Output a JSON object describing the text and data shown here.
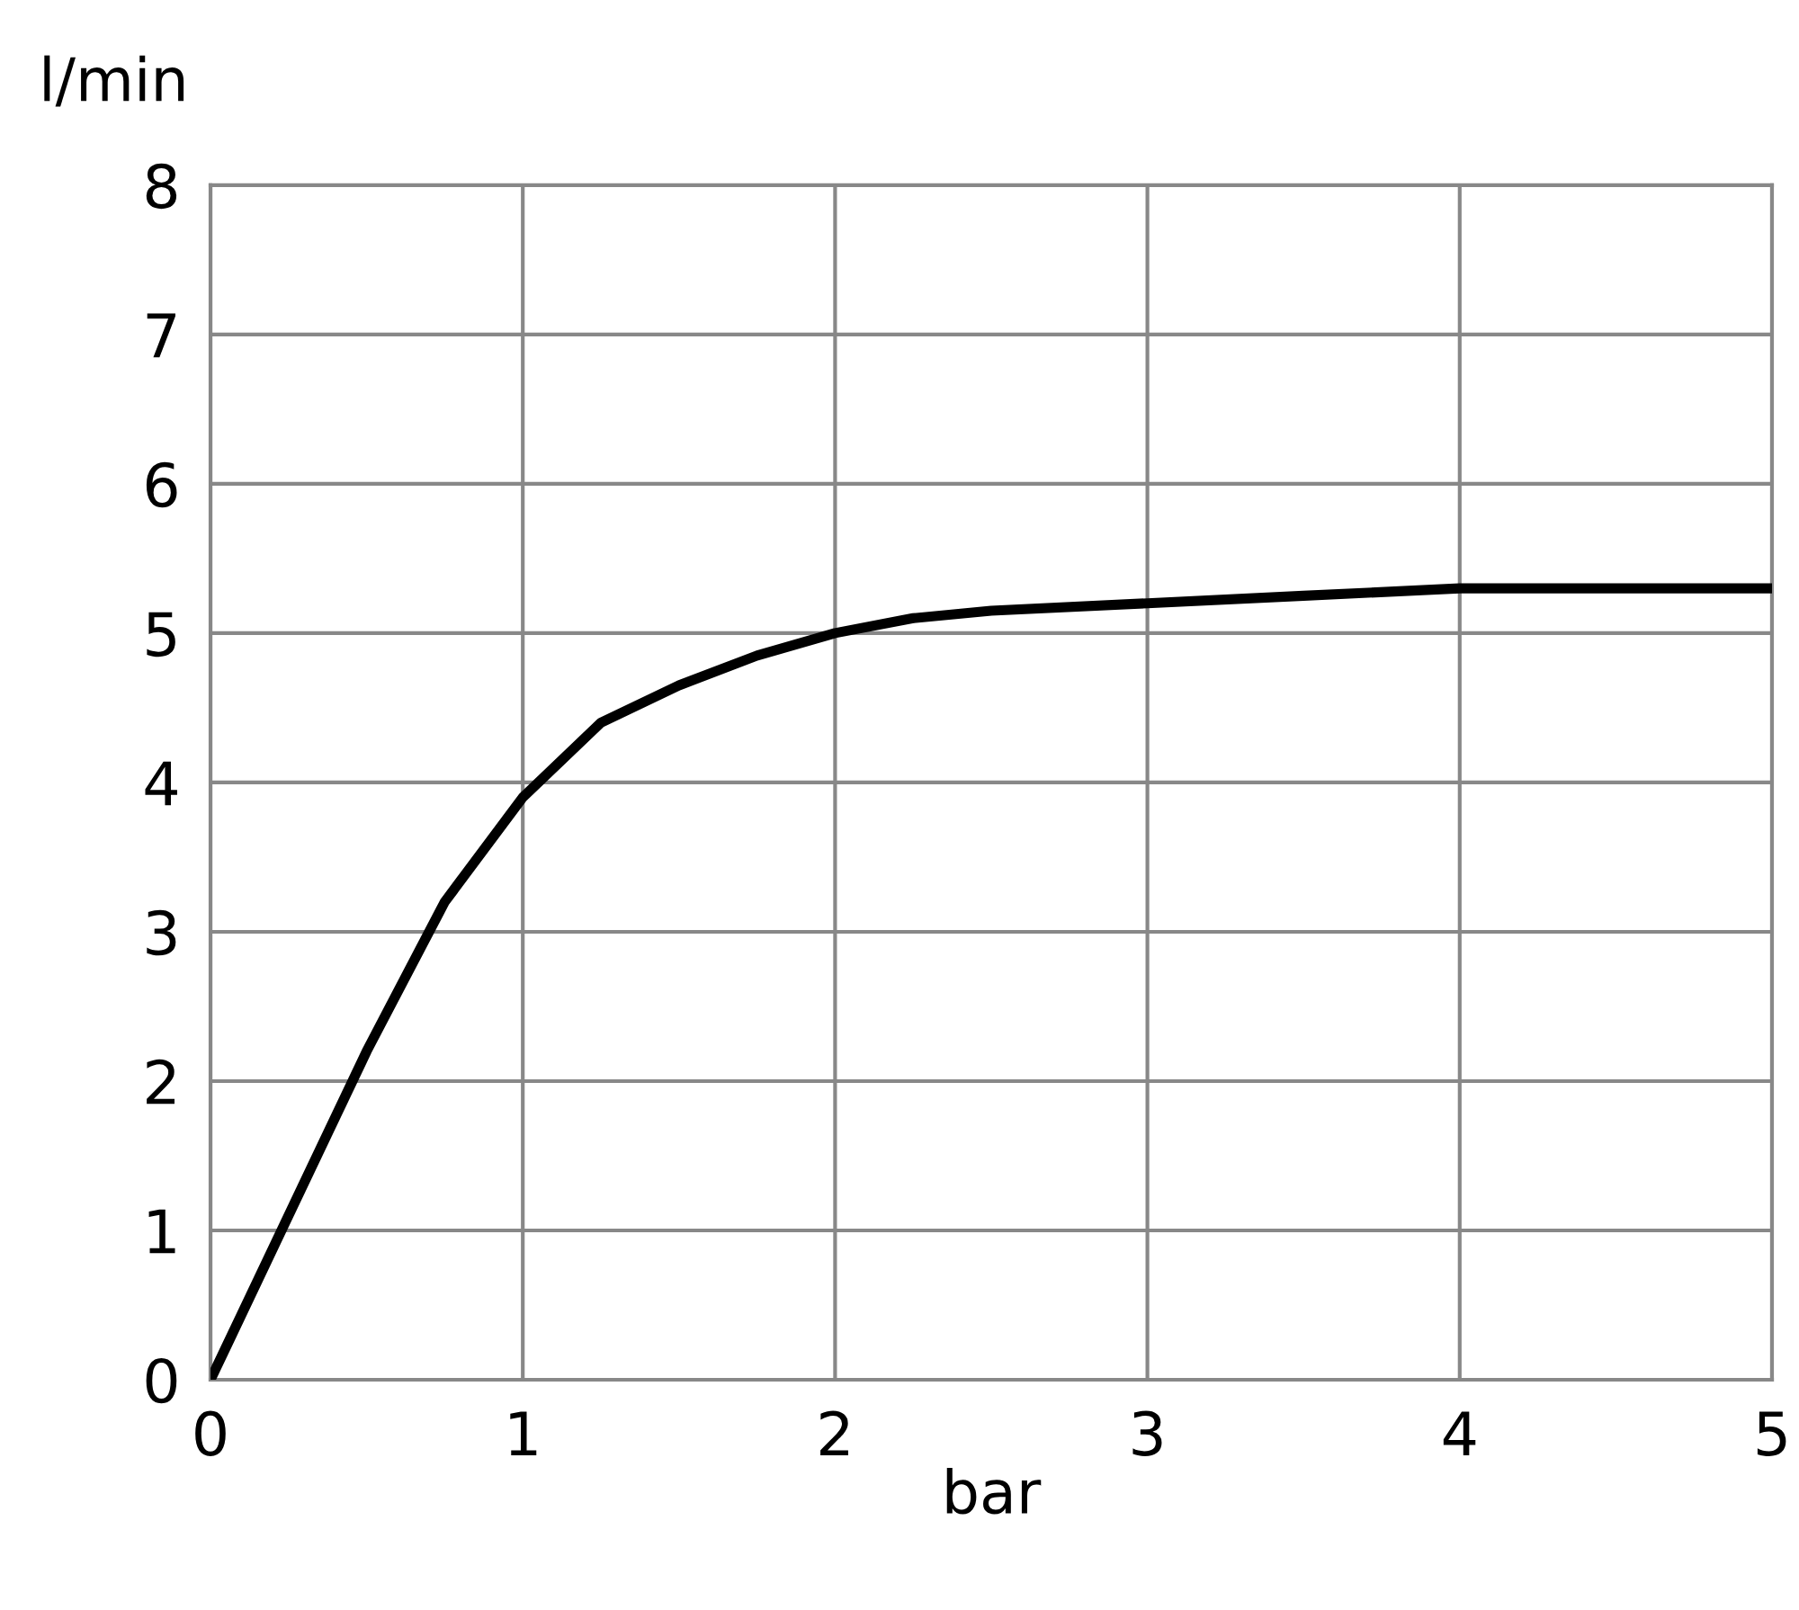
{
  "chart_data": {
    "type": "line",
    "xlabel": "bar",
    "ylabel": "l/min",
    "x": [
      0,
      0.25,
      0.5,
      0.75,
      1,
      1.25,
      1.5,
      1.75,
      2,
      2.25,
      2.5,
      3,
      3.5,
      4,
      4.5,
      5
    ],
    "series": [
      {
        "color": "#000000",
        "values": [
          0,
          1.1,
          2.2,
          3.2,
          3.9,
          4.4,
          4.65,
          4.85,
          5.0,
          5.1,
          5.15,
          5.2,
          5.25,
          5.3,
          5.3,
          5.3
        ]
      }
    ],
    "xlim": [
      0,
      5
    ],
    "xticks": [
      0,
      1,
      2,
      3,
      4,
      5
    ],
    "ylim": [
      0,
      8
    ],
    "yticks": [
      0,
      1,
      2,
      3,
      4,
      5,
      6,
      7,
      8
    ],
    "grid": true,
    "marker": "none",
    "line_style": "solid"
  }
}
